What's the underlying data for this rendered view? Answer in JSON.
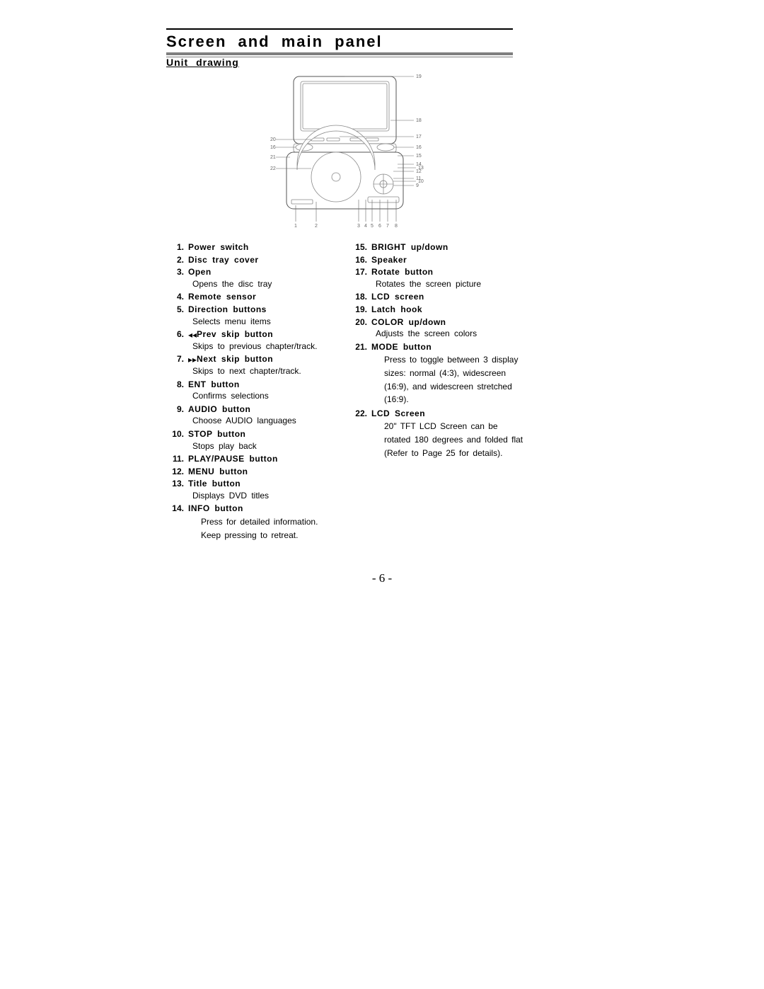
{
  "page": {
    "title": "Screen and main panel",
    "subtitle": "Unit drawing",
    "page_number": "- 6 -"
  },
  "diagram": {
    "callouts": {
      "top_right": [
        "19",
        "18",
        "17",
        "16",
        "15",
        "14",
        "13",
        "12",
        "11",
        "10",
        "9"
      ],
      "top_left": [
        "20",
        "16",
        "21",
        "22"
      ],
      "bottom": [
        "1",
        "2",
        "3",
        "4",
        "5",
        "6",
        "7",
        "8"
      ]
    }
  },
  "left_items": [
    {
      "title": "Power switch"
    },
    {
      "title": "Disc tray cover"
    },
    {
      "title": "Open",
      "desc": "Opens the disc tray"
    },
    {
      "title": "Remote sensor"
    },
    {
      "title": "Direction buttons",
      "desc": "Selects menu items"
    },
    {
      "title": "Prev skip button",
      "prefix_icon": "prev",
      "desc": "Skips to previous chapter/track."
    },
    {
      "title": "Next skip button",
      "prefix_icon": "next",
      "desc": "Skips to next chapter/track."
    },
    {
      "title": "ENT button",
      "desc": "Confirms selections"
    },
    {
      "title": "AUDIO button",
      "desc": "Choose AUDIO languages"
    },
    {
      "title": "STOP button",
      "desc": "Stops play back"
    },
    {
      "title": "PLAY/PAUSE button"
    },
    {
      "title": "MENU button"
    },
    {
      "title": "Title button",
      "desc": "Displays DVD titles"
    },
    {
      "title": " INFO button",
      "desc_wide": "Press for detailed information. Keep pressing to retreat."
    }
  ],
  "right_items": [
    {
      "title": "BRIGHT up/down"
    },
    {
      "title": "Speaker"
    },
    {
      "title": "Rotate button",
      "desc": "Rotates the screen picture"
    },
    {
      "title": "LCD screen"
    },
    {
      "title": "Latch hook"
    },
    {
      "title": "COLOR up/down",
      "desc": "Adjusts the screen colors"
    },
    {
      "title": "MODE button",
      "desc_wide": "Press to toggle between 3 display sizes: normal (4:3), widescreen (16:9), and widescreen stretched (16:9)."
    },
    {
      "title": "LCD Screen",
      "desc_wide": "20\" TFT LCD Screen can be rotated 180 degrees and folded flat (Refer to Page 25 for details)."
    }
  ]
}
